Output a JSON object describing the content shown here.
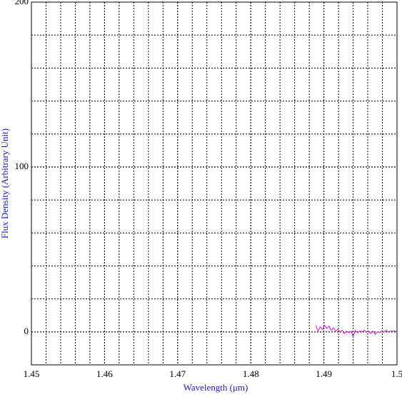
{
  "chart_data": {
    "type": "line",
    "xlabel": "Wavelength (μm)",
    "ylabel": "Flux Density (Arbitrary Unit)",
    "xlim": [
      1.45,
      1.5
    ],
    "ylim": [
      -20,
      200
    ],
    "xticks": [
      1.45,
      1.46,
      1.47,
      1.48,
      1.49,
      1.5
    ],
    "yticks": [
      0,
      100,
      200
    ],
    "xgrid": [
      1.452,
      1.454,
      1.456,
      1.458,
      1.46,
      1.462,
      1.464,
      1.466,
      1.468,
      1.47,
      1.472,
      1.474,
      1.476,
      1.478,
      1.48,
      1.482,
      1.484,
      1.486,
      1.488,
      1.49,
      1.492,
      1.494,
      1.496,
      1.498
    ],
    "ygrid": [
      -20,
      0,
      20,
      40,
      60,
      80,
      100,
      120,
      140,
      160,
      180
    ],
    "grid": true,
    "series": [
      {
        "color": "#d020d0",
        "x": [
          1.4889,
          1.4892,
          1.4895,
          1.4898,
          1.4901,
          1.4904,
          1.4907,
          1.491,
          1.4913,
          1.4916,
          1.4919,
          1.4922,
          1.4925,
          1.4928,
          1.4931,
          1.4934,
          1.4937,
          1.494,
          1.4943,
          1.4946,
          1.4949,
          1.4952,
          1.4955,
          1.4958,
          1.4961,
          1.4964,
          1.4967,
          1.497,
          1.4973,
          1.4976,
          1.4979,
          1.4982,
          1.4985,
          1.4988,
          1.4991,
          1.4994,
          1.4997,
          1.5
        ],
        "values": [
          4,
          0.5,
          3,
          1.5,
          4,
          2,
          3.5,
          1,
          2.5,
          0.5,
          1.5,
          0,
          1,
          -1,
          0.5,
          -0.5,
          0.5,
          -3,
          1,
          -0.5,
          0.5,
          0,
          1,
          0,
          0.5,
          -1,
          0.5,
          -1.5,
          0,
          -0.5,
          0.5,
          0,
          1,
          0,
          0.5,
          0.5,
          0.5,
          0
        ]
      }
    ]
  }
}
